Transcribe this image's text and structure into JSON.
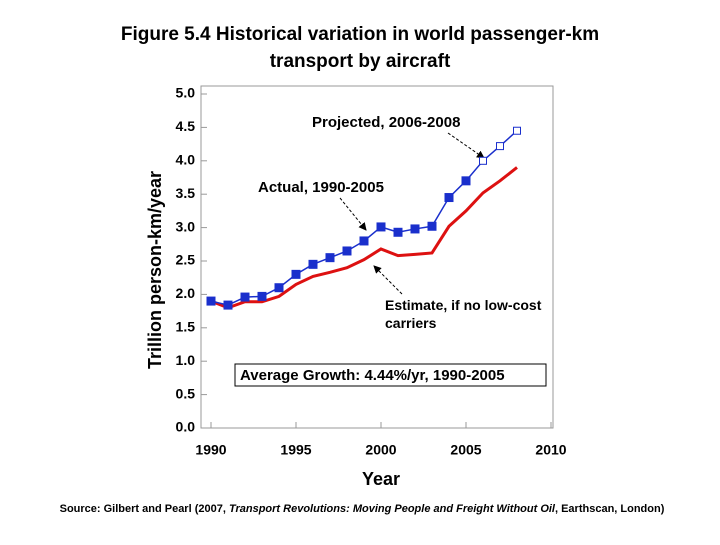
{
  "chart_data": {
    "type": "line",
    "title": "Figure 5.4 Historical variation in world passenger-km",
    "title_line2": "transport by aircraft",
    "x_label": "Year",
    "y_label": "Trillion person-km/year",
    "x": [
      1990,
      1991,
      1992,
      1993,
      1994,
      1995,
      1996,
      1997,
      1998,
      1999,
      2000,
      2001,
      2002,
      2003,
      2004,
      2005,
      2006,
      2007,
      2008
    ],
    "series": [
      {
        "name": "Actual, 1990-2005",
        "color": "#1a2fcc",
        "marker": "filled",
        "values": [
          1.9,
          1.84,
          1.96,
          1.97,
          2.1,
          2.3,
          2.45,
          2.55,
          2.65,
          2.8,
          3.01,
          2.93,
          2.98,
          3.02,
          3.45,
          3.7,
          null,
          null,
          null
        ]
      },
      {
        "name": "Projected, 2006-2008",
        "color": "#1a2fcc",
        "marker": "open",
        "values": [
          null,
          null,
          null,
          null,
          null,
          null,
          null,
          null,
          null,
          null,
          null,
          null,
          null,
          null,
          null,
          null,
          4.0,
          4.22,
          4.45
        ]
      },
      {
        "name": "Estimate, if no low-cost carriers",
        "color": "#dd1111",
        "marker": "none",
        "values": [
          1.9,
          1.8,
          1.89,
          1.89,
          1.97,
          2.15,
          2.27,
          2.33,
          2.4,
          2.52,
          2.68,
          2.58,
          2.6,
          2.62,
          3.02,
          3.25,
          3.52,
          3.7,
          3.9
        ]
      }
    ],
    "xlim": [
      1990,
      2010
    ],
    "xticks": [
      1990,
      1995,
      2000,
      2005,
      2010
    ],
    "ylim": [
      0,
      5
    ],
    "yticks": [
      {
        "value": 0,
        "label": "0.0"
      },
      0.5,
      {
        "value": 1,
        "label": "1.0"
      },
      1.5,
      {
        "value": 2,
        "label": "2.0"
      },
      2.5,
      {
        "value": 3,
        "label": "3.0"
      },
      3.5,
      {
        "value": 4,
        "label": "4.0"
      },
      4.5,
      {
        "value": 5,
        "label": "5.0"
      }
    ],
    "grid": false,
    "annotation": "Average Growth: 4.44%/yr, 1990-2005",
    "source_prefix": "Source: Gilbert and Pearl (2007, ",
    "source_title": "Transport Revolutions: Moving People and Freight Without Oil",
    "source_suffix": ", Earthscan, London)"
  }
}
